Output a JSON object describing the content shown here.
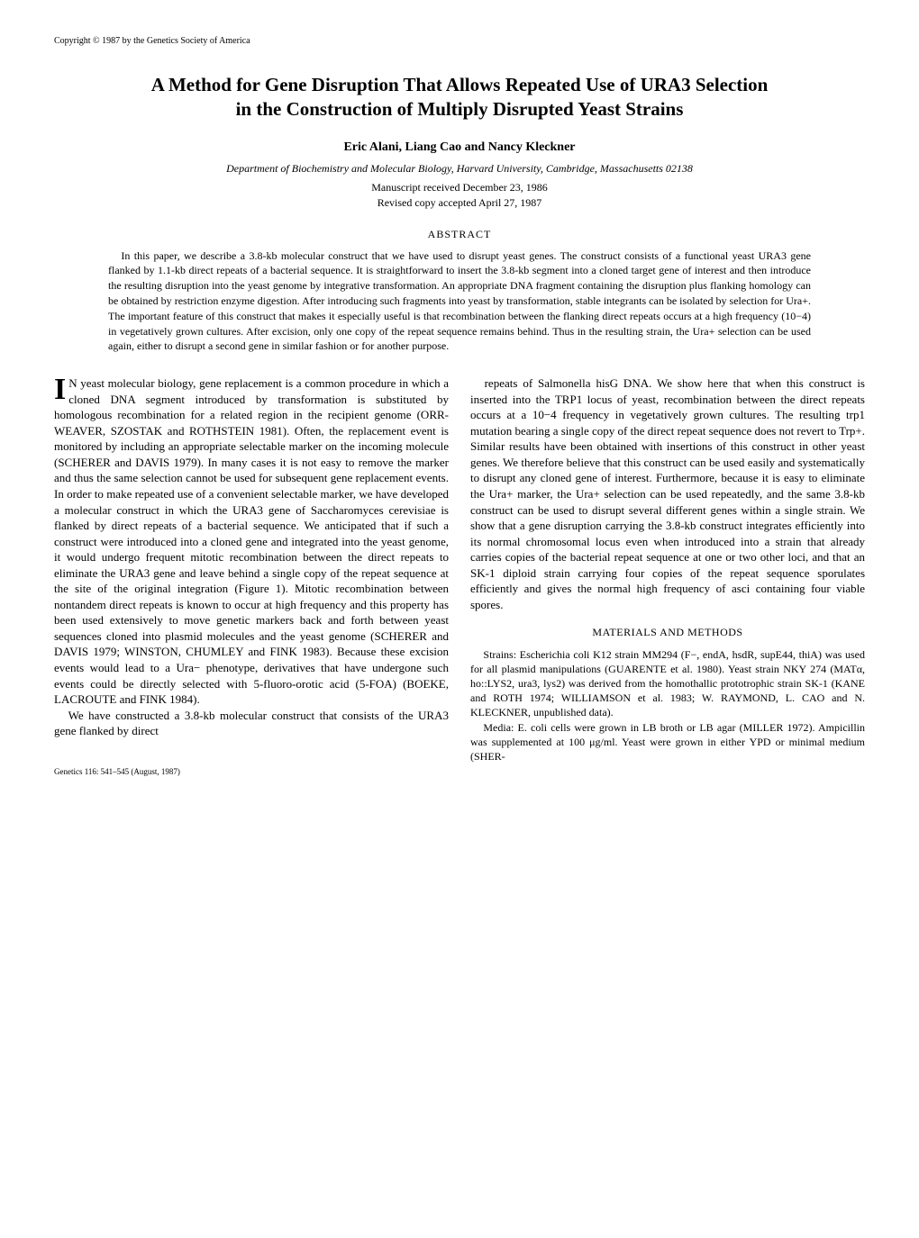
{
  "copyright": "Copyright © 1987 by the Genetics Society of America",
  "title_line1": "A Method for Gene Disruption That Allows Repeated Use of URA3 Selection",
  "title_line2": "in the Construction of Multiply Disrupted Yeast Strains",
  "authors": "Eric Alani, Liang Cao and Nancy Kleckner",
  "affiliation": "Department of Biochemistry and Molecular Biology, Harvard University, Cambridge, Massachusetts 02138",
  "date_received": "Manuscript received December 23, 1986",
  "date_revised": "Revised copy accepted April 27, 1987",
  "abstract_heading": "ABSTRACT",
  "abstract_body": "In this paper, we describe a 3.8-kb molecular construct that we have used to disrupt yeast genes. The construct consists of a functional yeast URA3 gene flanked by 1.1-kb direct repeats of a bacterial sequence. It is straightforward to insert the 3.8-kb segment into a cloned target gene of interest and then introduce the resulting disruption into the yeast genome by integrative transformation. An appropriate DNA fragment containing the disruption plus flanking homology can be obtained by restriction enzyme digestion. After introducing such fragments into yeast by transformation, stable integrants can be isolated by selection for Ura+. The important feature of this construct that makes it especially useful is that recombination between the flanking direct repeats occurs at a high frequency (10−4) in vegetatively grown cultures. After excision, only one copy of the repeat sequence remains behind. Thus in the resulting strain, the Ura+ selection can be used again, either to disrupt a second gene in similar fashion or for another purpose.",
  "col1_para1": "N yeast molecular biology, gene replacement is a common procedure in which a cloned DNA segment introduced by transformation is substituted by homologous recombination for a related region in the recipient genome (ORR-WEAVER, SZOSTAK and ROTHSTEIN 1981). Often, the replacement event is monitored by including an appropriate selectable marker on the incoming molecule (SCHERER and DAVIS 1979). In many cases it is not easy to remove the marker and thus the same selection cannot be used for subsequent gene replacement events. In order to make repeated use of a convenient selectable marker, we have developed a molecular construct in which the URA3 gene of Saccharomyces cerevisiae is flanked by direct repeats of a bacterial sequence. We anticipated that if such a construct were introduced into a cloned gene and integrated into the yeast genome, it would undergo frequent mitotic recombination between the direct repeats to eliminate the URA3 gene and leave behind a single copy of the repeat sequence at the site of the original integration (Figure 1). Mitotic recombination between nontandem direct repeats is known to occur at high frequency and this property has been used extensively to move genetic markers back and forth between yeast sequences cloned into plasmid molecules and the yeast genome (SCHERER and DAVIS 1979; WINSTON, CHUMLEY and FINK 1983). Because these excision events would lead to a Ura− phenotype, derivatives that have undergone such events could be directly selected with 5-fluoro-orotic acid (5-FOA) (BOEKE, LACROUTE and FINK 1984).",
  "col1_para2": "We have constructed a 3.8-kb molecular construct that consists of the URA3 gene flanked by direct",
  "col2_para1": "repeats of Salmonella hisG DNA. We show here that when this construct is inserted into the TRP1 locus of yeast, recombination between the direct repeats occurs at a 10−4 frequency in vegetatively grown cultures. The resulting trp1 mutation bearing a single copy of the direct repeat sequence does not revert to Trp+. Similar results have been obtained with insertions of this construct in other yeast genes. We therefore believe that this construct can be used easily and systematically to disrupt any cloned gene of interest. Furthermore, because it is easy to eliminate the Ura+ marker, the Ura+ selection can be used repeatedly, and the same 3.8-kb construct can be used to disrupt several different genes within a single strain. We show that a gene disruption carrying the 3.8-kb construct integrates efficiently into its normal chromosomal locus even when introduced into a strain that already carries copies of the bacterial repeat sequence at one or two other loci, and that an SK-1 diploid strain carrying four copies of the repeat sequence sporulates efficiently and gives the normal high frequency of asci containing four viable spores.",
  "materials_heading": "MATERIALS AND METHODS",
  "col2_para2": "Strains: Escherichia coli K12 strain MM294 (F−, endA, hsdR, supE44, thiA) was used for all plasmid manipulations (GUARENTE et al. 1980). Yeast strain NKY 274 (MATα, ho::LYS2, ura3, lys2) was derived from the homothallic prototrophic strain SK-1 (KANE and ROTH 1974; WILLIAMSON et al. 1983; W. RAYMOND, L. CAO and N. KLECKNER, unpublished data).",
  "col2_para3": "Media: E. coli cells were grown in LB broth or LB agar (MILLER 1972). Ampicillin was supplemented at 100 μg/ml. Yeast were grown in either YPD or minimal medium (SHER-",
  "footer": "Genetics 116: 541–545 (August, 1987)"
}
